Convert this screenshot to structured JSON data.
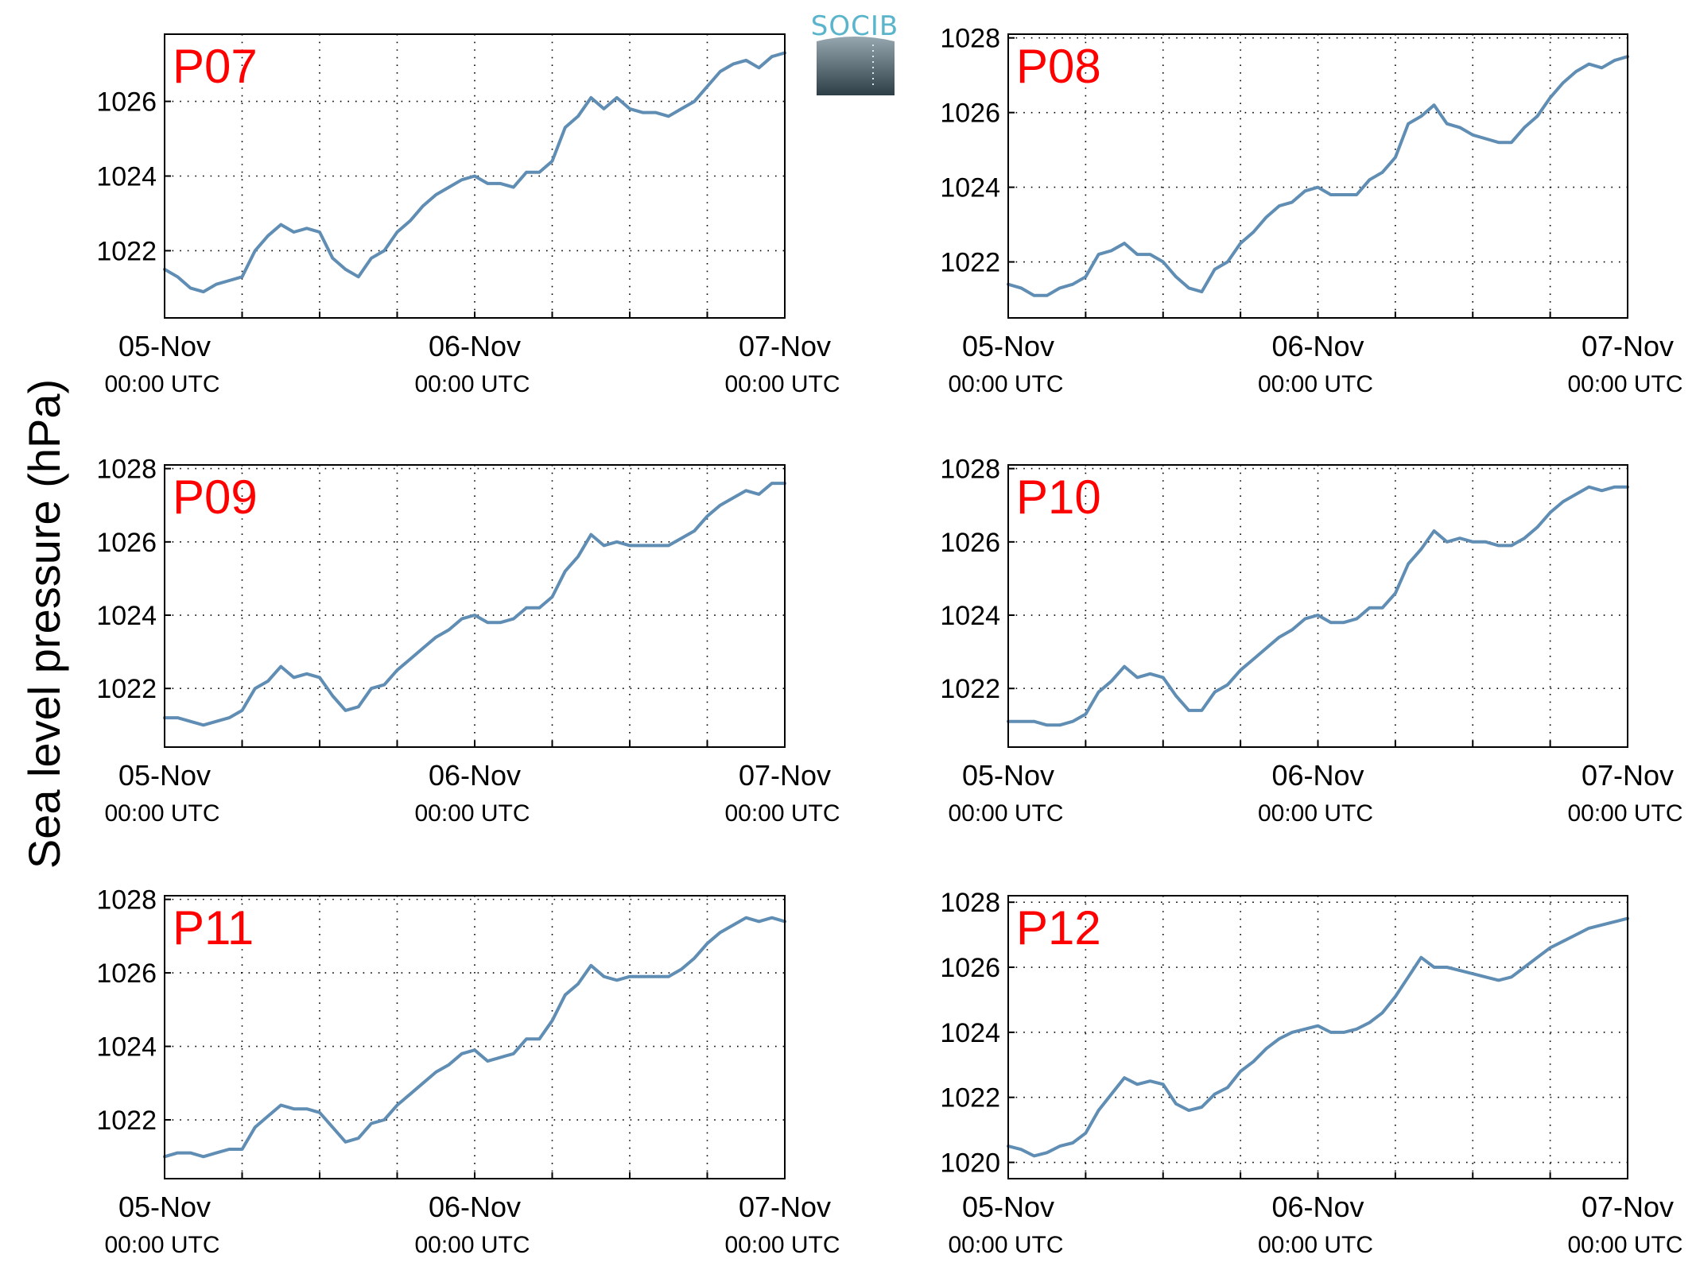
{
  "colors": {
    "series": "#5f8db3",
    "panel_title": "#ff0000",
    "axis": "#000000"
  },
  "figure": {
    "ylabel": "Sea level pressure (hPa)",
    "logo": {
      "text": "SOCIB",
      "color": "#5ab4cc"
    }
  },
  "chart_data": [
    {
      "type": "line",
      "title": "P07",
      "x_dates": [
        "05-Nov",
        "06-Nov",
        "07-Nov"
      ],
      "x_time_label": "00:00 UTC",
      "x_hours": [
        0,
        48
      ],
      "x_grid_every_hours": 6,
      "ylim": [
        1020.2,
        1027.8
      ],
      "yticks": [
        1022,
        1024,
        1026
      ],
      "grid": true,
      "series": [
        {
          "x": [
            0,
            1,
            2,
            3,
            4,
            5,
            6,
            7,
            8,
            9,
            10,
            11,
            12,
            13,
            14,
            15,
            16,
            17,
            18,
            19,
            20,
            21,
            22,
            23,
            24,
            25,
            26,
            27,
            28,
            29,
            30,
            31,
            32,
            33,
            34,
            35,
            36,
            37,
            38,
            39,
            40,
            41,
            42,
            43,
            44,
            45,
            46,
            47,
            48
          ],
          "values": [
            1021.5,
            1021.3,
            1021.0,
            1020.9,
            1021.1,
            1021.2,
            1021.3,
            1022.0,
            1022.4,
            1022.7,
            1022.5,
            1022.6,
            1022.5,
            1021.8,
            1021.5,
            1021.3,
            1021.8,
            1022.0,
            1022.5,
            1022.8,
            1023.2,
            1023.5,
            1023.7,
            1023.9,
            1024.0,
            1023.8,
            1023.8,
            1023.7,
            1024.1,
            1024.1,
            1024.4,
            1025.3,
            1025.6,
            1026.1,
            1025.8,
            1026.1,
            1025.8,
            1025.7,
            1025.7,
            1025.6,
            1025.8,
            1026.0,
            1026.4,
            1026.8,
            1027.0,
            1027.1,
            1026.9,
            1027.2,
            1027.3
          ]
        }
      ]
    },
    {
      "type": "line",
      "title": "P08",
      "x_dates": [
        "05-Nov",
        "06-Nov",
        "07-Nov"
      ],
      "x_time_label": "00:00 UTC",
      "x_hours": [
        0,
        48
      ],
      "x_grid_every_hours": 6,
      "ylim": [
        1020.5,
        1028.1
      ],
      "yticks": [
        1022,
        1024,
        1026,
        1028
      ],
      "grid": true,
      "series": [
        {
          "x": [
            0,
            1,
            2,
            3,
            4,
            5,
            6,
            7,
            8,
            9,
            10,
            11,
            12,
            13,
            14,
            15,
            16,
            17,
            18,
            19,
            20,
            21,
            22,
            23,
            24,
            25,
            26,
            27,
            28,
            29,
            30,
            31,
            32,
            33,
            34,
            35,
            36,
            37,
            38,
            39,
            40,
            41,
            42,
            43,
            44,
            45,
            46,
            47,
            48
          ],
          "values": [
            1021.4,
            1021.3,
            1021.1,
            1021.1,
            1021.3,
            1021.4,
            1021.6,
            1022.2,
            1022.3,
            1022.5,
            1022.2,
            1022.2,
            1022.0,
            1021.6,
            1021.3,
            1021.2,
            1021.8,
            1022.0,
            1022.5,
            1022.8,
            1023.2,
            1023.5,
            1023.6,
            1023.9,
            1024.0,
            1023.8,
            1023.8,
            1023.8,
            1024.2,
            1024.4,
            1024.8,
            1025.7,
            1025.9,
            1026.2,
            1025.7,
            1025.6,
            1025.4,
            1025.3,
            1025.2,
            1025.2,
            1025.6,
            1025.9,
            1026.4,
            1026.8,
            1027.1,
            1027.3,
            1027.2,
            1027.4,
            1027.5
          ]
        }
      ]
    },
    {
      "type": "line",
      "title": "P09",
      "x_dates": [
        "05-Nov",
        "06-Nov",
        "07-Nov"
      ],
      "x_time_label": "00:00 UTC",
      "x_hours": [
        0,
        48
      ],
      "x_grid_every_hours": 6,
      "ylim": [
        1020.4,
        1028.1
      ],
      "yticks": [
        1022,
        1024,
        1026,
        1028
      ],
      "grid": true,
      "series": [
        {
          "x": [
            0,
            1,
            2,
            3,
            4,
            5,
            6,
            7,
            8,
            9,
            10,
            11,
            12,
            13,
            14,
            15,
            16,
            17,
            18,
            19,
            20,
            21,
            22,
            23,
            24,
            25,
            26,
            27,
            28,
            29,
            30,
            31,
            32,
            33,
            34,
            35,
            36,
            37,
            38,
            39,
            40,
            41,
            42,
            43,
            44,
            45,
            46,
            47,
            48
          ],
          "values": [
            1021.2,
            1021.2,
            1021.1,
            1021.0,
            1021.1,
            1021.2,
            1021.4,
            1022.0,
            1022.2,
            1022.6,
            1022.3,
            1022.4,
            1022.3,
            1021.8,
            1021.4,
            1021.5,
            1022.0,
            1022.1,
            1022.5,
            1022.8,
            1023.1,
            1023.4,
            1023.6,
            1023.9,
            1024.0,
            1023.8,
            1023.8,
            1023.9,
            1024.2,
            1024.2,
            1024.5,
            1025.2,
            1025.6,
            1026.2,
            1025.9,
            1026.0,
            1025.9,
            1025.9,
            1025.9,
            1025.9,
            1026.1,
            1026.3,
            1026.7,
            1027.0,
            1027.2,
            1027.4,
            1027.3,
            1027.6,
            1027.6
          ]
        }
      ]
    },
    {
      "type": "line",
      "title": "P10",
      "x_dates": [
        "05-Nov",
        "06-Nov",
        "07-Nov"
      ],
      "x_time_label": "00:00 UTC",
      "x_hours": [
        0,
        48
      ],
      "x_grid_every_hours": 6,
      "ylim": [
        1020.4,
        1028.1
      ],
      "yticks": [
        1022,
        1024,
        1026,
        1028
      ],
      "grid": true,
      "series": [
        {
          "x": [
            0,
            1,
            2,
            3,
            4,
            5,
            6,
            7,
            8,
            9,
            10,
            11,
            12,
            13,
            14,
            15,
            16,
            17,
            18,
            19,
            20,
            21,
            22,
            23,
            24,
            25,
            26,
            27,
            28,
            29,
            30,
            31,
            32,
            33,
            34,
            35,
            36,
            37,
            38,
            39,
            40,
            41,
            42,
            43,
            44,
            45,
            46,
            47,
            48
          ],
          "values": [
            1021.1,
            1021.1,
            1021.1,
            1021.0,
            1021.0,
            1021.1,
            1021.3,
            1021.9,
            1022.2,
            1022.6,
            1022.3,
            1022.4,
            1022.3,
            1021.8,
            1021.4,
            1021.4,
            1021.9,
            1022.1,
            1022.5,
            1022.8,
            1023.1,
            1023.4,
            1023.6,
            1023.9,
            1024.0,
            1023.8,
            1023.8,
            1023.9,
            1024.2,
            1024.2,
            1024.6,
            1025.4,
            1025.8,
            1026.3,
            1026.0,
            1026.1,
            1026.0,
            1026.0,
            1025.9,
            1025.9,
            1026.1,
            1026.4,
            1026.8,
            1027.1,
            1027.3,
            1027.5,
            1027.4,
            1027.5,
            1027.5
          ]
        }
      ]
    },
    {
      "type": "line",
      "title": "P11",
      "x_dates": [
        "05-Nov",
        "06-Nov",
        "07-Nov"
      ],
      "x_time_label": "00:00 UTC",
      "x_hours": [
        0,
        48
      ],
      "x_grid_every_hours": 6,
      "ylim": [
        1020.4,
        1028.1
      ],
      "yticks": [
        1022,
        1024,
        1026,
        1028
      ],
      "grid": true,
      "series": [
        {
          "x": [
            0,
            1,
            2,
            3,
            4,
            5,
            6,
            7,
            8,
            9,
            10,
            11,
            12,
            13,
            14,
            15,
            16,
            17,
            18,
            19,
            20,
            21,
            22,
            23,
            24,
            25,
            26,
            27,
            28,
            29,
            30,
            31,
            32,
            33,
            34,
            35,
            36,
            37,
            38,
            39,
            40,
            41,
            42,
            43,
            44,
            45,
            46,
            47,
            48
          ],
          "values": [
            1021.0,
            1021.1,
            1021.1,
            1021.0,
            1021.1,
            1021.2,
            1021.2,
            1021.8,
            1022.1,
            1022.4,
            1022.3,
            1022.3,
            1022.2,
            1021.8,
            1021.4,
            1021.5,
            1021.9,
            1022.0,
            1022.4,
            1022.7,
            1023.0,
            1023.3,
            1023.5,
            1023.8,
            1023.9,
            1023.6,
            1023.7,
            1023.8,
            1024.2,
            1024.2,
            1024.7,
            1025.4,
            1025.7,
            1026.2,
            1025.9,
            1025.8,
            1025.9,
            1025.9,
            1025.9,
            1025.9,
            1026.1,
            1026.4,
            1026.8,
            1027.1,
            1027.3,
            1027.5,
            1027.4,
            1027.5,
            1027.4
          ]
        }
      ]
    },
    {
      "type": "line",
      "title": "P12",
      "x_dates": [
        "05-Nov",
        "06-Nov",
        "07-Nov"
      ],
      "x_time_label": "00:00 UTC",
      "x_hours": [
        0,
        48
      ],
      "x_grid_every_hours": 6,
      "ylim": [
        1019.5,
        1028.2
      ],
      "yticks": [
        1020,
        1022,
        1024,
        1026,
        1028
      ],
      "grid": true,
      "series": [
        {
          "x": [
            0,
            1,
            2,
            3,
            4,
            5,
            6,
            7,
            8,
            9,
            10,
            11,
            12,
            13,
            14,
            15,
            16,
            17,
            18,
            19,
            20,
            21,
            22,
            23,
            24,
            25,
            26,
            27,
            28,
            29,
            30,
            31,
            32,
            33,
            34,
            35,
            36,
            37,
            38,
            39,
            40,
            41,
            42,
            43,
            44,
            45,
            46,
            47,
            48
          ],
          "values": [
            1020.5,
            1020.4,
            1020.2,
            1020.3,
            1020.5,
            1020.6,
            1020.9,
            1021.6,
            1022.1,
            1022.6,
            1022.4,
            1022.5,
            1022.4,
            1021.8,
            1021.6,
            1021.7,
            1022.1,
            1022.3,
            1022.8,
            1023.1,
            1023.5,
            1023.8,
            1024.0,
            1024.1,
            1024.2,
            1024.0,
            1024.0,
            1024.1,
            1024.3,
            1024.6,
            1025.1,
            1025.7,
            1026.3,
            1026.0,
            1026.0,
            1025.9,
            1025.8,
            1025.7,
            1025.6,
            1025.7,
            1026.0,
            1026.3,
            1026.6,
            1026.8,
            1027.0,
            1027.2,
            1027.3,
            1027.4,
            1027.5
          ]
        }
      ]
    }
  ]
}
